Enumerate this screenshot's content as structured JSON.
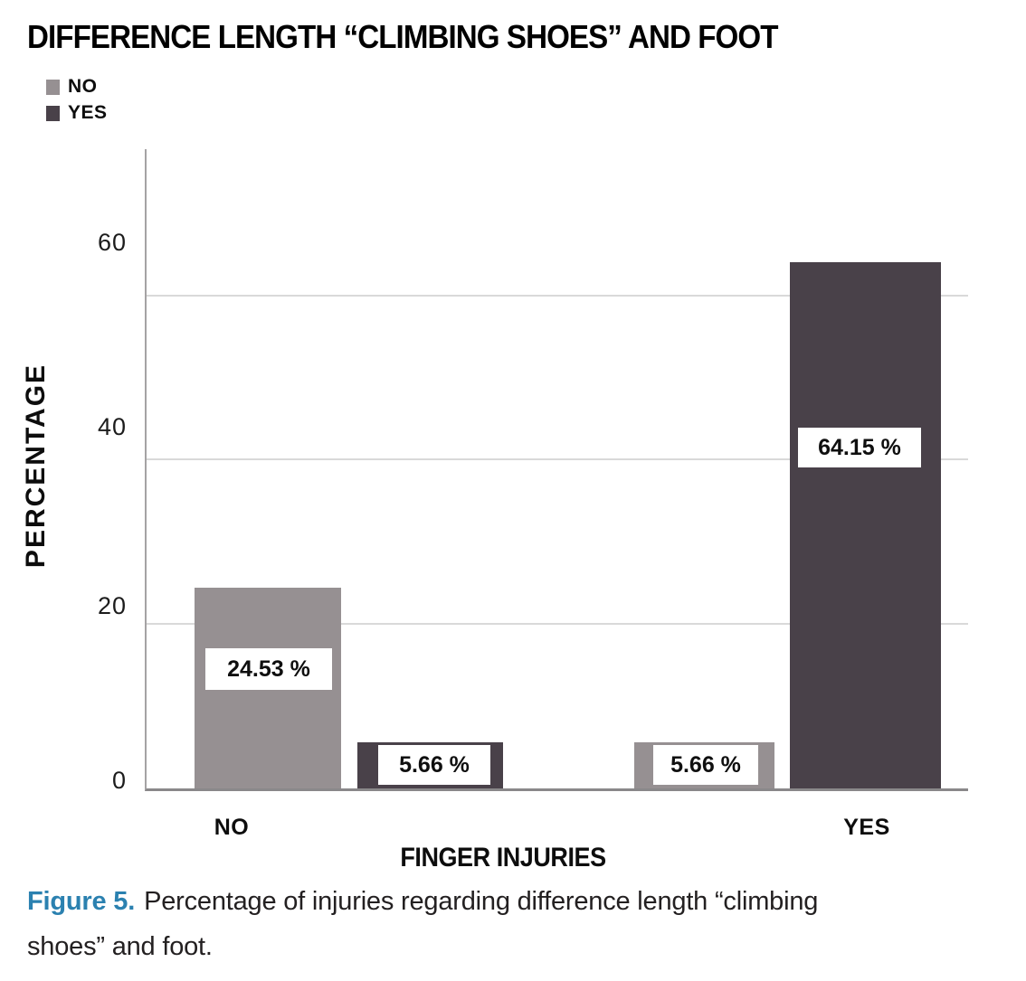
{
  "figure": {
    "title": "DIFFERENCE LENGTH “CLIMBING SHOES” AND FOOT",
    "caption": {
      "label": "Figure 5.",
      "line1": "Percentage of injuries regarding difference length “climbing",
      "line2": "shoes” and foot."
    }
  },
  "colors": {
    "series_no": "#969092",
    "series_yes": "#494149",
    "gridline": "#d9d9d9",
    "axis": "#8a888a",
    "caption_accent": "#2b81b0",
    "label_box_bg": "#ffffff"
  },
  "chart_data": {
    "type": "bar",
    "title": "DIFFERENCE LENGTH “CLIMBING SHOES” AND FOOT",
    "categories": [
      "NO",
      "YES"
    ],
    "series": [
      {
        "name": "NO",
        "color": "#969092",
        "values": [
          24.53,
          5.66
        ]
      },
      {
        "name": "YES",
        "color": "#494149",
        "values": [
          5.66,
          64.15
        ]
      }
    ],
    "value_labels": [
      [
        "24.53 %",
        "5.66 %"
      ],
      [
        "5.66 %",
        "64.15 %"
      ]
    ],
    "xlabel": "FINGER INJURIES",
    "ylabel": "PERCENTAGE",
    "ylim": [
      0,
      78
    ],
    "yticks": [
      0,
      20,
      40,
      60
    ],
    "ytick_labels": [
      "0",
      "20",
      "40",
      "60"
    ],
    "grid": "horizontal",
    "legend_position": "top-left"
  }
}
